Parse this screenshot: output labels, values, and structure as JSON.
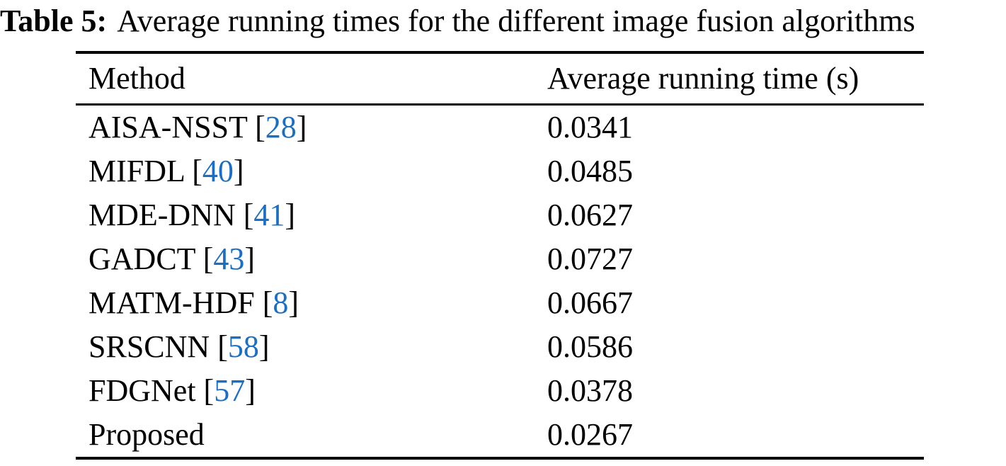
{
  "caption": {
    "label": "Table 5:",
    "text": "Average running times for the different image fusion algorithms"
  },
  "table": {
    "headers": [
      "Method",
      "Average running time (s)"
    ],
    "rows": [
      {
        "label": "AISA-NSST [",
        "cite": "28",
        "close": "]",
        "time": "0.0341"
      },
      {
        "label": "MIFDL [",
        "cite": "40",
        "close": "]",
        "time": "0.0485"
      },
      {
        "label": "MDE-DNN [",
        "cite": "41",
        "close": "]",
        "time": "0.0627"
      },
      {
        "label": "GADCT [",
        "cite": "43",
        "close": "]",
        "time": "0.0727"
      },
      {
        "label": "MATM-HDF [",
        "cite": "8",
        "close": "]",
        "time": "0.0667"
      },
      {
        "label": "SRSCNN [",
        "cite": "58",
        "close": "]",
        "time": "0.0586"
      },
      {
        "label": "FDGNet [",
        "cite": "57",
        "close": "]",
        "time": "0.0378"
      },
      {
        "label": "Proposed",
        "cite": "",
        "close": "",
        "time": "0.0267"
      }
    ]
  },
  "colors": {
    "text": "#000000",
    "background": "#ffffff",
    "citation_blue": "#1a6fc4",
    "rule_black": "#000000"
  },
  "chart_data": {
    "type": "table",
    "title": "Table 5: Average running times for the different image fusion algorithms",
    "columns": [
      "Method",
      "Average running time (s)"
    ],
    "rows": [
      [
        "AISA-NSST [28]",
        0.0341
      ],
      [
        "MIFDL [40]",
        0.0485
      ],
      [
        "MDE-DNN [41]",
        0.0627
      ],
      [
        "GADCT [43]",
        0.0727
      ],
      [
        "MATM-HDF [8]",
        0.0667
      ],
      [
        "SRSCNN [58]",
        0.0586
      ],
      [
        "FDGNet [57]",
        0.0378
      ],
      [
        "Proposed",
        0.0267
      ]
    ]
  }
}
